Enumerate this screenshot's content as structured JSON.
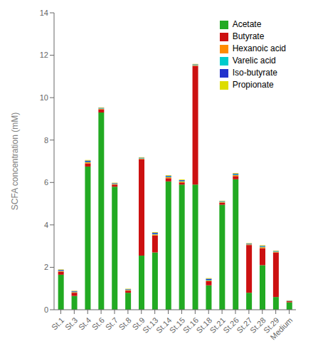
{
  "chart_data": {
    "type": "bar",
    "stacked": true,
    "categories": [
      "St.1",
      "St.3",
      "St.4",
      "St.6",
      "St.7",
      "St.8",
      "St.9",
      "St.13",
      "St.14",
      "St.15",
      "St.16",
      "St.18",
      "St.21",
      "St.26",
      "St.27",
      "St.28",
      "St.29",
      "Medium"
    ],
    "series": [
      {
        "name": "Acetate",
        "color": "#22aa22",
        "values": [
          1.65,
          0.65,
          6.75,
          9.3,
          5.8,
          0.8,
          2.55,
          2.7,
          6.05,
          5.9,
          5.9,
          1.15,
          4.95,
          6.15,
          0.8,
          2.1,
          0.6,
          0.35
        ]
      },
      {
        "name": "Butyrate",
        "color": "#cc1111",
        "values": [
          0.15,
          0.15,
          0.15,
          0.15,
          0.1,
          0.1,
          4.55,
          0.8,
          0.15,
          0.1,
          5.6,
          0.2,
          0.1,
          0.15,
          2.25,
          0.8,
          2.1,
          0.05
        ]
      },
      {
        "name": "Hexanoic acid",
        "color": "#ff8c00",
        "values": [
          0.03,
          0.03,
          0.05,
          0.03,
          0.03,
          0.03,
          0.03,
          0.05,
          0.05,
          0.05,
          0.03,
          0.03,
          0.03,
          0.05,
          0.03,
          0.05,
          0.03,
          0.01
        ]
      },
      {
        "name": "Varelic acid",
        "color": "#00cccc",
        "values": [
          0.02,
          0.02,
          0.03,
          0.02,
          0.02,
          0.02,
          0.02,
          0.03,
          0.03,
          0.03,
          0.02,
          0.03,
          0.02,
          0.03,
          0.02,
          0.03,
          0.02,
          0.01
        ]
      },
      {
        "name": "Iso-butyrate",
        "color": "#2233cc",
        "values": [
          0.03,
          0.03,
          0.05,
          0.02,
          0.02,
          0.02,
          0.02,
          0.05,
          0.03,
          0.03,
          0.02,
          0.05,
          0.02,
          0.03,
          0.02,
          0.03,
          0.02,
          0.01
        ]
      },
      {
        "name": "Propionate",
        "color": "#dddd00",
        "values": [
          0.02,
          0.02,
          0.03,
          0.02,
          0.02,
          0.02,
          0.02,
          0.03,
          0.03,
          0.03,
          0.02,
          0.03,
          0.02,
          0.03,
          0.02,
          0.03,
          0.02,
          0.01
        ]
      }
    ],
    "ylabel": "SCFA concentration (mM)",
    "ylim": [
      0,
      14
    ],
    "yticks": [
      0,
      2,
      4,
      6,
      8,
      10,
      12,
      14
    ],
    "grid": false,
    "legend": "upper right"
  }
}
